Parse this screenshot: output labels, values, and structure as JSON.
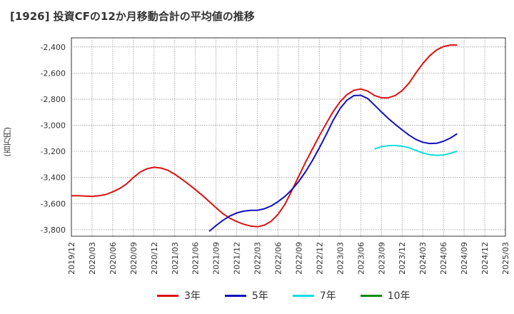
{
  "title": "[1926]  投資CFの12か月移動合計の平均値の推移",
  "y_unit": "(百万円)",
  "chart_data": {
    "type": "line",
    "title": "[1926]  投資CFの12か月移動合計の平均値の推移",
    "ylabel": "(百万円)",
    "xlabel": "",
    "ylim": [
      -3850,
      -2330
    ],
    "yticks": [
      -2400,
      -2600,
      -2800,
      -3000,
      -3200,
      -3400,
      -3600,
      -3800
    ],
    "ytick_labels": [
      "-2,400",
      "-2,600",
      "-2,800",
      "-3,000",
      "-3,200",
      "-3,400",
      "-3,600",
      "-3,800"
    ],
    "xlim": [
      "2019-12",
      "2025-03"
    ],
    "xticks": [
      "2019/12",
      "2020/03",
      "2020/06",
      "2020/09",
      "2020/12",
      "2021/03",
      "2021/06",
      "2021/09",
      "2021/12",
      "2022/03",
      "2022/06",
      "2022/09",
      "2022/12",
      "2023/03",
      "2023/06",
      "2023/09",
      "2023/12",
      "2024/03",
      "2024/06",
      "2024/09",
      "2024/12",
      "2025/03"
    ],
    "grid": true,
    "legend_position": "bottom",
    "series": [
      {
        "name": "3年",
        "color": "#dd1111",
        "points": [
          [
            "2019-12",
            -3540
          ],
          [
            "2020-01",
            -3540
          ],
          [
            "2020-02",
            -3542
          ],
          [
            "2020-03",
            -3545
          ],
          [
            "2020-04",
            -3540
          ],
          [
            "2020-05",
            -3530
          ],
          [
            "2020-06",
            -3510
          ],
          [
            "2020-07",
            -3485
          ],
          [
            "2020-08",
            -3450
          ],
          [
            "2020-09",
            -3400
          ],
          [
            "2020-10",
            -3358
          ],
          [
            "2020-11",
            -3332
          ],
          [
            "2020-12",
            -3322
          ],
          [
            "2021-01",
            -3328
          ],
          [
            "2021-02",
            -3345
          ],
          [
            "2021-03",
            -3375
          ],
          [
            "2021-04",
            -3412
          ],
          [
            "2021-05",
            -3452
          ],
          [
            "2021-06",
            -3493
          ],
          [
            "2021-07",
            -3537
          ],
          [
            "2021-08",
            -3584
          ],
          [
            "2021-09",
            -3632
          ],
          [
            "2021-10",
            -3678
          ],
          [
            "2021-11",
            -3712
          ],
          [
            "2021-12",
            -3738
          ],
          [
            "2022-01",
            -3758
          ],
          [
            "2022-02",
            -3772
          ],
          [
            "2022-03",
            -3778
          ],
          [
            "2022-04",
            -3765
          ],
          [
            "2022-05",
            -3735
          ],
          [
            "2022-06",
            -3682
          ],
          [
            "2022-07",
            -3605
          ],
          [
            "2022-08",
            -3500
          ],
          [
            "2022-09",
            -3390
          ],
          [
            "2022-10",
            -3282
          ],
          [
            "2022-11",
            -3180
          ],
          [
            "2022-12",
            -3080
          ],
          [
            "2023-01",
            -2985
          ],
          [
            "2023-02",
            -2895
          ],
          [
            "2023-03",
            -2820
          ],
          [
            "2023-04",
            -2765
          ],
          [
            "2023-05",
            -2732
          ],
          [
            "2023-06",
            -2722
          ],
          [
            "2023-07",
            -2738
          ],
          [
            "2023-08",
            -2772
          ],
          [
            "2023-09",
            -2790
          ],
          [
            "2023-10",
            -2790
          ],
          [
            "2023-11",
            -2772
          ],
          [
            "2023-12",
            -2735
          ],
          [
            "2024-01",
            -2678
          ],
          [
            "2024-02",
            -2600
          ],
          [
            "2024-03",
            -2528
          ],
          [
            "2024-04",
            -2468
          ],
          [
            "2024-05",
            -2423
          ],
          [
            "2024-06",
            -2397
          ],
          [
            "2024-07",
            -2385
          ],
          [
            "2024-08",
            -2386
          ]
        ]
      },
      {
        "name": "5年",
        "color": "#1111bb",
        "points": [
          [
            "2021-08",
            -3812
          ],
          [
            "2021-09",
            -3768
          ],
          [
            "2021-10",
            -3728
          ],
          [
            "2021-11",
            -3695
          ],
          [
            "2021-12",
            -3672
          ],
          [
            "2022-01",
            -3658
          ],
          [
            "2022-02",
            -3652
          ],
          [
            "2022-03",
            -3651
          ],
          [
            "2022-04",
            -3640
          ],
          [
            "2022-05",
            -3618
          ],
          [
            "2022-06",
            -3585
          ],
          [
            "2022-07",
            -3545
          ],
          [
            "2022-08",
            -3493
          ],
          [
            "2022-09",
            -3430
          ],
          [
            "2022-10",
            -3355
          ],
          [
            "2022-11",
            -3268
          ],
          [
            "2022-12",
            -3172
          ],
          [
            "2023-01",
            -3070
          ],
          [
            "2023-02",
            -2962
          ],
          [
            "2023-03",
            -2872
          ],
          [
            "2023-04",
            -2808
          ],
          [
            "2023-05",
            -2773
          ],
          [
            "2023-06",
            -2770
          ],
          [
            "2023-07",
            -2795
          ],
          [
            "2023-08",
            -2845
          ],
          [
            "2023-09",
            -2898
          ],
          [
            "2023-10",
            -2948
          ],
          [
            "2023-11",
            -2993
          ],
          [
            "2023-12",
            -3035
          ],
          [
            "2024-01",
            -3075
          ],
          [
            "2024-02",
            -3108
          ],
          [
            "2024-03",
            -3130
          ],
          [
            "2024-04",
            -3140
          ],
          [
            "2024-05",
            -3138
          ],
          [
            "2024-06",
            -3123
          ],
          [
            "2024-07",
            -3098
          ],
          [
            "2024-08",
            -3065
          ]
        ]
      },
      {
        "name": "7年",
        "color": "#11dddd",
        "points": [
          [
            "2023-08",
            -3182
          ],
          [
            "2023-09",
            -3164
          ],
          [
            "2023-10",
            -3156
          ],
          [
            "2023-11",
            -3155
          ],
          [
            "2023-12",
            -3160
          ],
          [
            "2024-01",
            -3172
          ],
          [
            "2024-02",
            -3192
          ],
          [
            "2024-03",
            -3212
          ],
          [
            "2024-04",
            -3225
          ],
          [
            "2024-05",
            -3230
          ],
          [
            "2024-06",
            -3228
          ],
          [
            "2024-07",
            -3215
          ],
          [
            "2024-08",
            -3198
          ]
        ]
      },
      {
        "name": "10年",
        "color": "#118811",
        "points": []
      }
    ]
  }
}
